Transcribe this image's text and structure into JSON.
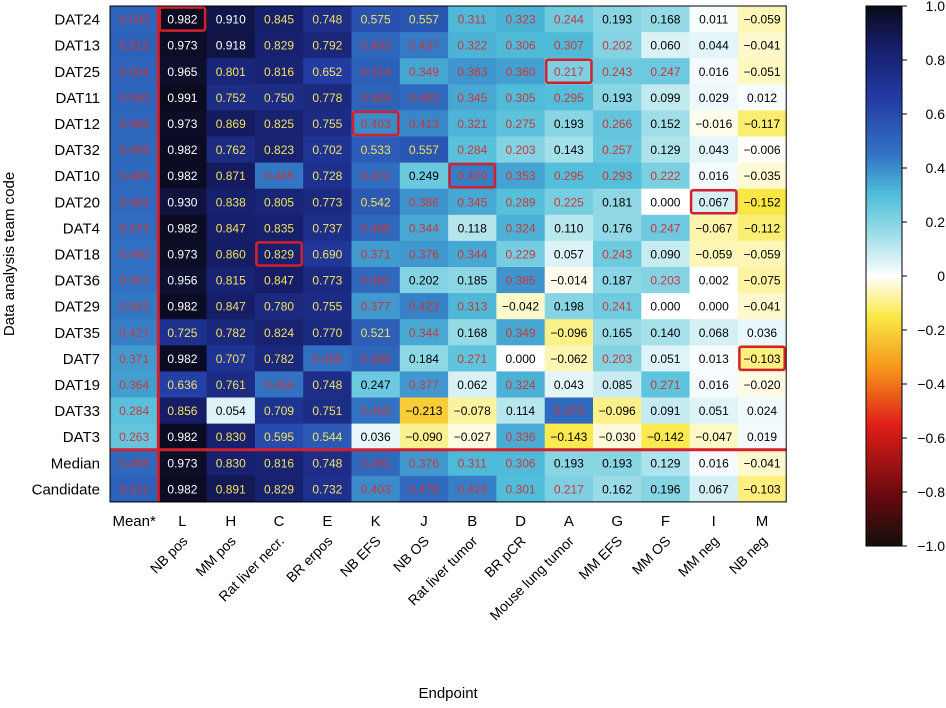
{
  "chart_data": {
    "type": "heatmap",
    "xlabel": "Endpoint",
    "ylabel": "Data analysis team code",
    "color_range": [
      -1.0,
      1.0
    ],
    "colorbar_ticks": [
      "1.0",
      "0.8",
      "0.6",
      "0.4",
      "0.2",
      "0",
      "−0.2",
      "−0.4",
      "−0.6",
      "−0.8",
      "−1.0"
    ],
    "colorbar_values": [
      1.0,
      0.8,
      0.6,
      0.4,
      0.2,
      0,
      -0.2,
      -0.4,
      -0.6,
      -0.8,
      -1.0
    ],
    "columns": [
      {
        "code": "Mean*",
        "name": ""
      },
      {
        "code": "L",
        "name": "NB pos"
      },
      {
        "code": "H",
        "name": "MM pos"
      },
      {
        "code": "C",
        "name": "Rat liver necr."
      },
      {
        "code": "E",
        "name": "BR erpos"
      },
      {
        "code": "K",
        "name": "NB EFS"
      },
      {
        "code": "J",
        "name": "NB OS"
      },
      {
        "code": "B",
        "name": "Rat liver tumor"
      },
      {
        "code": "D",
        "name": "BR pCR"
      },
      {
        "code": "A",
        "name": "Mouse lung tumor"
      },
      {
        "code": "G",
        "name": "MM EFS"
      },
      {
        "code": "F",
        "name": "MM OS"
      },
      {
        "code": "I",
        "name": "MM neg"
      },
      {
        "code": "M",
        "name": "NB neg"
      }
    ],
    "rows": [
      "DAT24",
      "DAT13",
      "DAT25",
      "DAT11",
      "DAT12",
      "DAT32",
      "DAT10",
      "DAT20",
      "DAT4",
      "DAT18",
      "DAT36",
      "DAT29",
      "DAT35",
      "DAT7",
      "DAT19",
      "DAT33",
      "DAT3",
      "Median",
      "Candidate"
    ],
    "values": [
      [
        0.5,
        0.982,
        0.91,
        0.845,
        0.748,
        0.575,
        0.557,
        0.311,
        0.323,
        0.244,
        0.193,
        0.168,
        0.011,
        -0.059
      ],
      [
        0.513,
        0.973,
        0.918,
        0.829,
        0.792,
        0.493,
        0.437,
        0.322,
        0.306,
        0.307,
        0.202,
        0.06,
        0.044,
        -0.041
      ],
      [
        0.504,
        0.965,
        0.801,
        0.816,
        0.652,
        0.514,
        0.349,
        0.383,
        0.36,
        0.217,
        0.243,
        0.247,
        0.016,
        -0.051
      ],
      [
        0.5,
        0.991,
        0.752,
        0.75,
        0.778,
        0.509,
        0.483,
        0.345,
        0.305,
        0.295,
        0.193,
        0.099,
        0.029,
        0.012
      ],
      [
        0.495,
        0.973,
        0.869,
        0.825,
        0.755,
        0.403,
        0.413,
        0.321,
        0.275,
        0.193,
        0.266,
        0.152,
        -0.016,
        -0.117
      ],
      [
        0.489,
        0.982,
        0.762,
        0.823,
        0.702,
        0.533,
        0.557,
        0.284,
        0.203,
        0.143,
        0.257,
        0.129,
        0.043,
        -0.006
      ],
      [
        0.485,
        0.982,
        0.871,
        0.445,
        0.728,
        0.472,
        0.249,
        0.429,
        0.353,
        0.295,
        0.293,
        0.222,
        0.016,
        -0.035
      ],
      [
        0.483,
        0.93,
        0.838,
        0.805,
        0.773,
        0.542,
        0.386,
        0.345,
        0.289,
        0.225,
        0.181,
        0.0,
        0.067,
        -0.152
      ],
      [
        0.473,
        0.982,
        0.847,
        0.835,
        0.737,
        0.488,
        0.344,
        0.118,
        0.324,
        0.11,
        0.176,
        0.247,
        -0.067,
        -0.112
      ],
      [
        0.46,
        0.973,
        0.86,
        0.829,
        0.69,
        0.371,
        0.376,
        0.344,
        0.229,
        0.057,
        0.243,
        0.09,
        -0.059,
        -0.059
      ],
      [
        0.457,
        0.956,
        0.815,
        0.847,
        0.773,
        0.491,
        0.202,
        0.185,
        0.385,
        -0.014,
        0.187,
        0.203,
        0.002,
        -0.075
      ],
      [
        0.443,
        0.982,
        0.847,
        0.78,
        0.755,
        0.377,
        0.423,
        0.313,
        -0.042,
        0.198,
        0.241,
        0.0,
        0.0,
        -0.041
      ],
      [
        0.427,
        0.725,
        0.782,
        0.824,
        0.77,
        0.521,
        0.344,
        0.168,
        0.349,
        -0.096,
        0.165,
        0.14,
        0.068,
        0.036
      ],
      [
        0.371,
        0.982,
        0.707,
        0.782,
        0.466,
        0.499,
        0.184,
        0.271,
        0.0,
        -0.062,
        0.203,
        0.051,
        0.013,
        -0.103
      ],
      [
        0.364,
        0.636,
        0.761,
        0.454,
        0.748,
        0.247,
        0.377,
        0.062,
        0.324,
        0.043,
        0.085,
        0.271,
        0.016,
        -0.02
      ],
      [
        0.284,
        0.856,
        0.054,
        0.709,
        0.751,
        0.455,
        -0.213,
        -0.078,
        0.114,
        0.479,
        -0.096,
        0.091,
        0.051,
        0.024
      ],
      [
        0.263,
        0.982,
        0.83,
        0.595,
        0.544,
        0.036,
        -0.09,
        -0.027,
        0.336,
        -0.143,
        -0.03,
        -0.142,
        -0.047,
        0.019
      ],
      [
        0.488,
        0.973,
        0.83,
        0.816,
        0.748,
        0.491,
        0.376,
        0.311,
        0.306,
        0.193,
        0.193,
        0.129,
        0.016,
        -0.041
      ],
      [
        0.511,
        0.982,
        0.891,
        0.829,
        0.732,
        0.403,
        0.479,
        0.429,
        0.301,
        0.217,
        0.162,
        0.196,
        0.067,
        -0.103
      ]
    ],
    "labels": [
      [
        "0.500",
        "0.982",
        "0.910",
        "0.845",
        "0.748",
        "0.575",
        "0.557",
        "0.311",
        "0.323",
        "0.244",
        "0.193",
        "0.168",
        "0.011",
        "−0.059"
      ],
      [
        "0.513",
        "0.973",
        "0.918",
        "0.829",
        "0.792",
        "0.493",
        "0.437",
        "0.322",
        "0.306",
        "0.307",
        "0.202",
        "0.060",
        "0.044",
        "−0.041"
      ],
      [
        "0.504",
        "0.965",
        "0.801",
        "0.816",
        "0.652",
        "0.514",
        "0.349",
        "0.383",
        "0.360",
        "0.217",
        "0.243",
        "0.247",
        "0.016",
        "−0.051"
      ],
      [
        "0.500",
        "0.991",
        "0.752",
        "0.750",
        "0.778",
        "0.509",
        "0.483",
        "0.345",
        "0.305",
        "0.295",
        "0.193",
        "0.099",
        "0.029",
        "0.012"
      ],
      [
        "0.495",
        "0.973",
        "0.869",
        "0.825",
        "0.755",
        "0.403",
        "0.413",
        "0.321",
        "0.275",
        "0.193",
        "0.266",
        "0.152",
        "−0.016",
        "−0.117"
      ],
      [
        "0.489",
        "0.982",
        "0.762",
        "0.823",
        "0.702",
        "0.533",
        "0.557",
        "0.284",
        "0.203",
        "0.143",
        "0.257",
        "0.129",
        "0.043",
        "−0.006"
      ],
      [
        "0.485",
        "0.982",
        "0.871",
        "0.445",
        "0.728",
        "0.472",
        "0.249",
        "0.429",
        "0.353",
        "0.295",
        "0.293",
        "0.222",
        "0.016",
        "−0.035"
      ],
      [
        "0.483",
        "0.930",
        "0.838",
        "0.805",
        "0.773",
        "0.542",
        "0.386",
        "0.345",
        "0.289",
        "0.225",
        "0.181",
        "0.000",
        "0.067",
        "−0.152"
      ],
      [
        "0.473",
        "0.982",
        "0.847",
        "0.835",
        "0.737",
        "0.488",
        "0.344",
        "0.118",
        "0.324",
        "0.110",
        "0.176",
        "0.247",
        "−0.067",
        "−0.112"
      ],
      [
        "0.460",
        "0.973",
        "0.860",
        "0.829",
        "0.690",
        "0.371",
        "0.376",
        "0.344",
        "0.229",
        "0.057",
        "0.243",
        "0.090",
        "−0.059",
        "−0.059"
      ],
      [
        "0.457",
        "0.956",
        "0.815",
        "0.847",
        "0.773",
        "0.491",
        "0.202",
        "0.185",
        "0.385",
        "−0.014",
        "0.187",
        "0.203",
        "0.002",
        "−0.075"
      ],
      [
        "0.443",
        "0.982",
        "0.847",
        "0.780",
        "0.755",
        "0.377",
        "0.423",
        "0.313",
        "−0.042",
        "0.198",
        "0.241",
        "0.000",
        "0.000",
        "−0.041"
      ],
      [
        "0.427",
        "0.725",
        "0.782",
        "0.824",
        "0.770",
        "0.521",
        "0.344",
        "0.168",
        "0.349",
        "−0.096",
        "0.165",
        "0.140",
        "0.068",
        "0.036"
      ],
      [
        "0.371",
        "0.982",
        "0.707",
        "0.782",
        "0.466",
        "0.499",
        "0.184",
        "0.271",
        "0.000",
        "−0.062",
        "0.203",
        "0.051",
        "0.013",
        "−0.103"
      ],
      [
        "0.364",
        "0.636",
        "0.761",
        "0.454",
        "0.748",
        "0.247",
        "0.377",
        "0.062",
        "0.324",
        "0.043",
        "0.085",
        "0.271",
        "0.016",
        "−0.020"
      ],
      [
        "0.284",
        "0.856",
        "0.054",
        "0.709",
        "0.751",
        "0.455",
        "−0.213",
        "−0.078",
        "0.114",
        "0.479",
        "−0.096",
        "0.091",
        "0.051",
        "0.024"
      ],
      [
        "0.263",
        "0.982",
        "0.830",
        "0.595",
        "0.544",
        "0.036",
        "−0.090",
        "−0.027",
        "0.336",
        "−0.143",
        "−0.030",
        "−0.142",
        "−0.047",
        "0.019"
      ],
      [
        "0.488",
        "0.973",
        "0.830",
        "0.816",
        "0.748",
        "0.491",
        "0.376",
        "0.311",
        "0.306",
        "0.193",
        "0.193",
        "0.129",
        "0.016",
        "−0.041"
      ],
      [
        "0.511",
        "0.982",
        "0.891",
        "0.829",
        "0.732",
        "0.403",
        "0.479",
        "0.429",
        "0.301",
        "0.217",
        "0.162",
        "0.196",
        "0.067",
        "−0.103"
      ]
    ],
    "highlighted_cells": [
      {
        "row": "DAT24",
        "col": "L"
      },
      {
        "row": "DAT25",
        "col": "A"
      },
      {
        "row": "DAT12",
        "col": "K"
      },
      {
        "row": "DAT10",
        "col": "B"
      },
      {
        "row": "DAT20",
        "col": "I"
      },
      {
        "row": "DAT18",
        "col": "C"
      },
      {
        "row": "DAT7",
        "col": "M"
      }
    ],
    "colors": {
      "highlight": "#d4202a",
      "separator": "#d4202a",
      "text_dark": "#000000",
      "text_light": "#ffffff",
      "text_yellow": "#f1e25a",
      "text_red": "#c8383a"
    }
  }
}
